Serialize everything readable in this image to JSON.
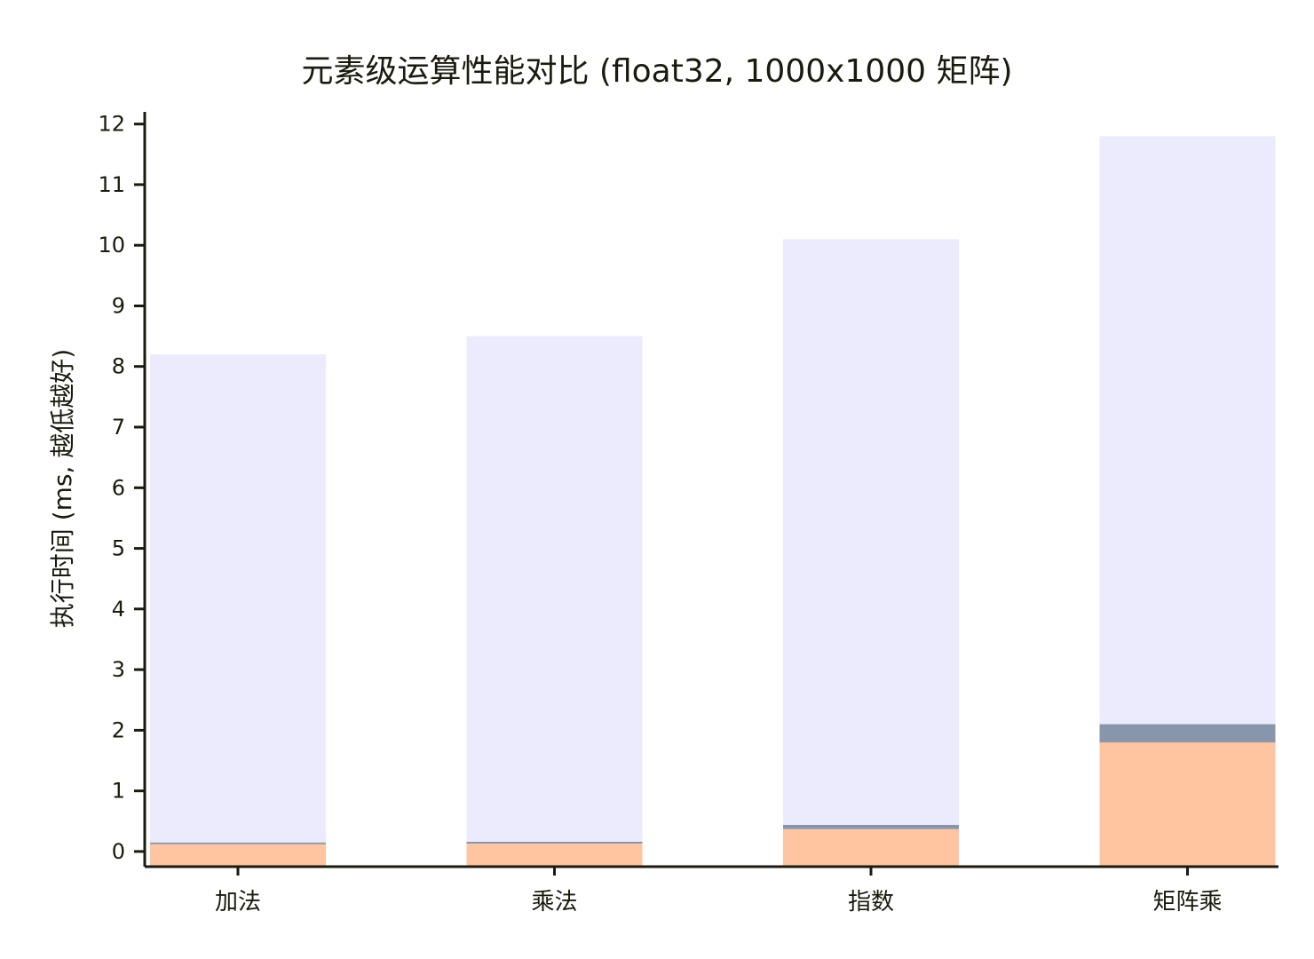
{
  "chart_data": {
    "type": "bar",
    "stacked": true,
    "title": "元素级运算性能对比 (float32, 1000x1000 矩阵)",
    "xlabel": "",
    "ylabel": "执行时间 (ms, 越低越好)",
    "ylim": [
      -0.25,
      12.2
    ],
    "yticks": [
      "0",
      "1",
      "2",
      "3",
      "4",
      "5",
      "6",
      "7",
      "8",
      "9",
      "10",
      "11",
      "12"
    ],
    "categories": [
      "加法",
      "乘法",
      "指数",
      "矩阵乘"
    ],
    "series": [
      {
        "values": [
          0.12,
          0.13,
          0.37,
          1.8
        ],
        "color": "#ffc4a0"
      },
      {
        "values": [
          0.03,
          0.03,
          0.07,
          0.3
        ],
        "color": "#8896ab"
      },
      {
        "values": [
          8.05,
          8.34,
          9.66,
          9.7
        ],
        "color": "#ebebfd"
      }
    ],
    "grid": false,
    "legend": "none"
  }
}
